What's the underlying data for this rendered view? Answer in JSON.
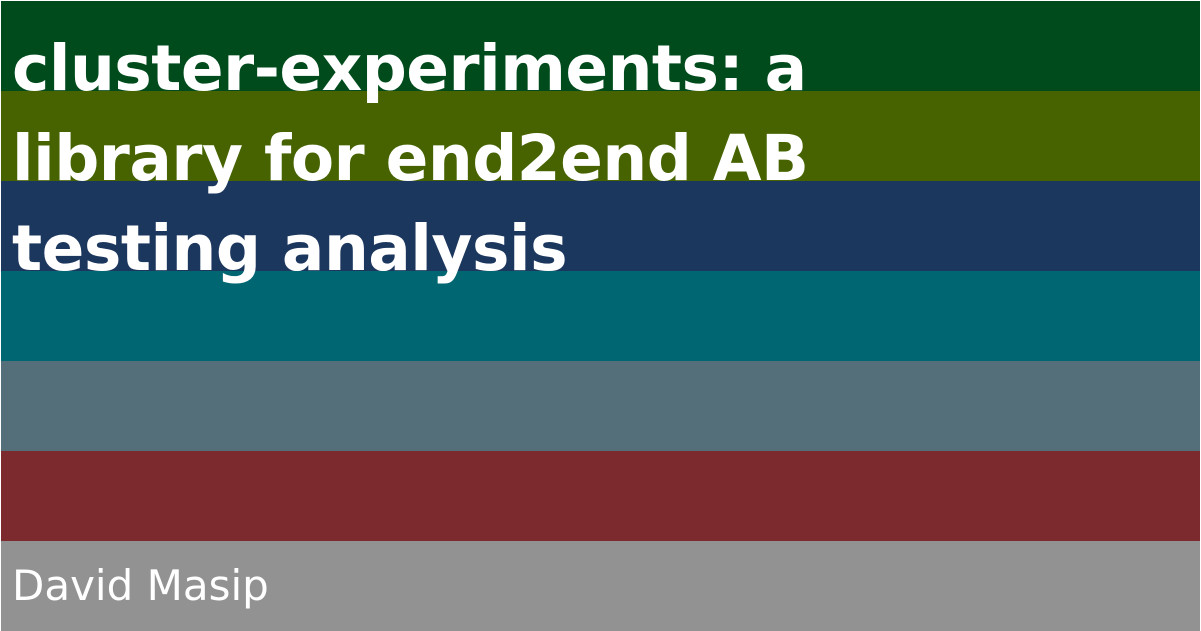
{
  "card": {
    "title_lines": [
      "cluster-experiments: a",
      "library for end2end AB",
      "testing analysis"
    ],
    "author": "David Masip",
    "stripe_colors": [
      "#004b1c",
      "#466300",
      "#1c375e",
      "#006672",
      "#546f7a",
      "#7d2a2e",
      "#929292"
    ]
  }
}
